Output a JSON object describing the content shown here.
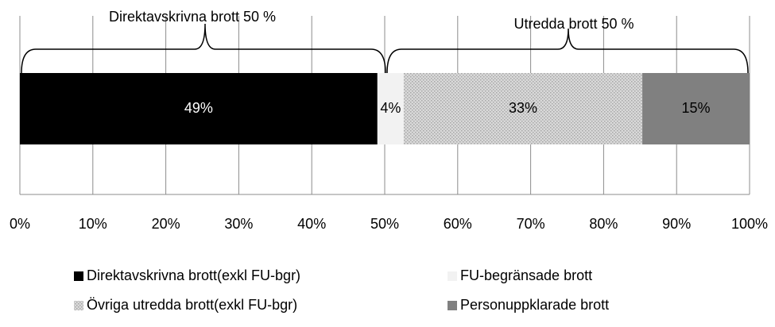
{
  "chart_data": {
    "type": "bar",
    "orientation": "horizontal",
    "stacked": true,
    "categories": [
      null
    ],
    "series": [
      {
        "name": "Direktavskrivna brott(exkl FU-bgr)",
        "color": "#000000",
        "values": [
          49
        ],
        "value_labels": [
          "49%"
        ]
      },
      {
        "name": "FU-begränsade brott",
        "color": "#f2f2f2",
        "values": [
          3.6
        ],
        "value_labels": [
          "4%"
        ]
      },
      {
        "name": "Övriga utredda brott(exkl FU-bgr)",
        "color": "#c8c8c8",
        "pattern": "dots",
        "values": [
          32.7
        ],
        "value_labels": [
          "33%"
        ]
      },
      {
        "name": "Personuppklarade brott",
        "color": "#808080",
        "values": [
          14.7
        ],
        "value_labels": [
          "15%"
        ]
      }
    ],
    "annotations": [
      "Direktavskrivna brott 50 %",
      "Utredda brott 50 %"
    ],
    "xlim": [
      0,
      100
    ],
    "xticks": [
      {
        "value": 0,
        "label": "0%"
      },
      {
        "value": 10,
        "label": "10%"
      },
      {
        "value": 20,
        "label": "20%"
      },
      {
        "value": 30,
        "label": "30%"
      },
      {
        "value": 40,
        "label": "40%"
      },
      {
        "value": 50,
        "label": "50%"
      },
      {
        "value": 60,
        "label": "60%"
      },
      {
        "value": 70,
        "label": "70%"
      },
      {
        "value": 80,
        "label": "80%"
      },
      {
        "value": 90,
        "label": "90%"
      },
      {
        "value": 100,
        "label": "100%"
      }
    ],
    "grid": true,
    "legend": "bottom"
  }
}
